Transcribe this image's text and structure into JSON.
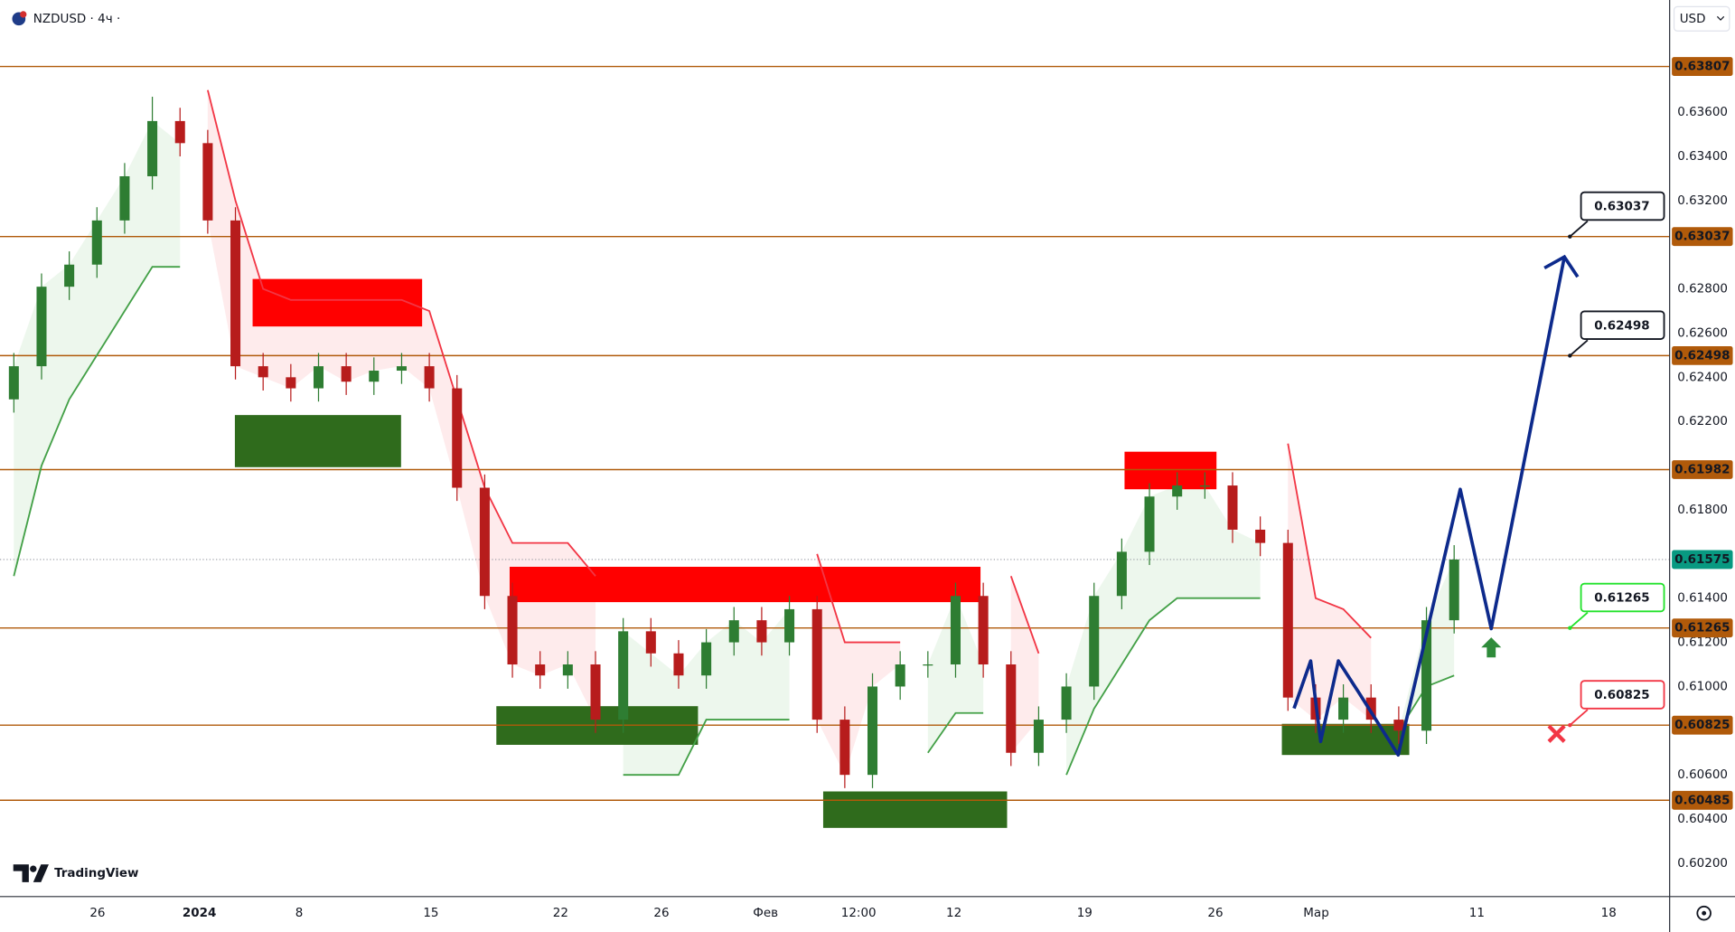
{
  "chart_data": {
    "type": "candlestick",
    "title": "NZDUSD · 4ч ·",
    "currency": "USD",
    "brand": "TradingView",
    "up_color": "#2e7d32",
    "down_color": "#b71c1c",
    "x": [
      0,
      1,
      2,
      3,
      4,
      5,
      6,
      7,
      8,
      9,
      10,
      11,
      12,
      13,
      14,
      15,
      16,
      17,
      18,
      19,
      20,
      21,
      22,
      23,
      24,
      25,
      26,
      27,
      28,
      29,
      30,
      31,
      32,
      33,
      34,
      35,
      36,
      37,
      38,
      39,
      40,
      41,
      42,
      43,
      44,
      45,
      46,
      47,
      48,
      49,
      50,
      51,
      52
    ],
    "open": [
      0.623,
      0.6245,
      0.6281,
      0.6291,
      0.6311,
      0.6331,
      0.6356,
      0.6346,
      0.6311,
      0.6245,
      0.624,
      0.6235,
      0.6245,
      0.6238,
      0.6243,
      0.6245,
      0.6235,
      0.619,
      0.6141,
      0.611,
      0.6105,
      0.611,
      0.6085,
      0.6125,
      0.6115,
      0.6105,
      0.612,
      0.613,
      0.612,
      0.6135,
      0.6085,
      0.606,
      0.61,
      0.611,
      0.611,
      0.6141,
      0.611,
      0.607,
      0.6085,
      0.61,
      0.6141,
      0.6161,
      0.6186,
      0.6191,
      0.6191,
      0.6171,
      0.6165,
      0.6095,
      0.6085,
      0.6095,
      0.6085,
      0.608,
      0.613
    ],
    "high": [
      0.6251,
      0.6287,
      0.6297,
      0.6317,
      0.6337,
      0.6367,
      0.6362,
      0.6352,
      0.6317,
      0.6251,
      0.6246,
      0.6251,
      0.6251,
      0.6249,
      0.6251,
      0.6251,
      0.6241,
      0.6196,
      0.6147,
      0.6116,
      0.6116,
      0.6116,
      0.6131,
      0.6131,
      0.6121,
      0.6126,
      0.6136,
      0.6136,
      0.6141,
      0.6141,
      0.6091,
      0.6106,
      0.6116,
      0.6116,
      0.6147,
      0.6147,
      0.6116,
      0.6091,
      0.6106,
      0.6147,
      0.6167,
      0.6192,
      0.6197,
      0.6197,
      0.6197,
      0.6177,
      0.6171,
      0.6101,
      0.6101,
      0.6101,
      0.6091,
      0.6136,
      0.6164
    ],
    "low": [
      0.6224,
      0.6239,
      0.6275,
      0.6285,
      0.6305,
      0.6325,
      0.634,
      0.6305,
      0.6239,
      0.6234,
      0.6229,
      0.6229,
      0.6232,
      0.6232,
      0.6237,
      0.6229,
      0.6184,
      0.6135,
      0.6104,
      0.6099,
      0.6099,
      0.6079,
      0.6079,
      0.6109,
      0.6099,
      0.6099,
      0.6114,
      0.6114,
      0.6114,
      0.6079,
      0.6054,
      0.6054,
      0.6094,
      0.6104,
      0.6104,
      0.6104,
      0.6064,
      0.6064,
      0.6079,
      0.6094,
      0.6135,
      0.6155,
      0.618,
      0.6185,
      0.6165,
      0.6159,
      0.6089,
      0.6079,
      0.6079,
      0.6079,
      0.6074,
      0.6074,
      0.6124
    ],
    "close": [
      0.6245,
      0.6281,
      0.6291,
      0.6311,
      0.6331,
      0.6356,
      0.6346,
      0.6311,
      0.6245,
      0.624,
      0.6235,
      0.6245,
      0.6238,
      0.6243,
      0.6245,
      0.6235,
      0.619,
      0.6141,
      0.611,
      0.6105,
      0.611,
      0.6085,
      0.6125,
      0.6115,
      0.6105,
      0.612,
      0.613,
      0.612,
      0.6135,
      0.6085,
      0.606,
      0.61,
      0.611,
      0.611,
      0.6141,
      0.611,
      0.607,
      0.6085,
      0.61,
      0.6141,
      0.6161,
      0.6186,
      0.6191,
      0.6191,
      0.6171,
      0.6165,
      0.6095,
      0.6085,
      0.6095,
      0.6085,
      0.608,
      0.613,
      0.61575
    ],
    "stop_up": {
      "color": "#43a047",
      "fill": "rgba(76,175,80,0.10)",
      "values": [
        0.615,
        0.62,
        0.623,
        0.625,
        0.627,
        0.629,
        0.629,
        null,
        null,
        null,
        null,
        null,
        null,
        null,
        null,
        null,
        null,
        null,
        null,
        null,
        null,
        null,
        0.606,
        0.606,
        0.606,
        0.6085,
        0.6085,
        0.6085,
        0.6085,
        null,
        null,
        null,
        null,
        0.607,
        0.6088,
        0.6088,
        null,
        null,
        0.606,
        0.609,
        0.611,
        0.613,
        0.614,
        0.614,
        0.614,
        0.614,
        null,
        null,
        null,
        null,
        0.608,
        0.61,
        0.6105
      ]
    },
    "stop_down": {
      "color": "#f23645",
      "fill": "rgba(242,54,69,0.10)",
      "values": [
        null,
        null,
        null,
        null,
        null,
        null,
        null,
        0.637,
        0.632,
        0.628,
        0.6275,
        0.6275,
        0.6275,
        0.6275,
        0.6275,
        0.627,
        0.623,
        0.619,
        0.6165,
        0.6165,
        0.6165,
        0.615,
        null,
        null,
        null,
        null,
        null,
        null,
        null,
        0.616,
        0.612,
        0.612,
        0.612,
        null,
        null,
        null,
        0.615,
        0.6115,
        null,
        null,
        null,
        null,
        null,
        null,
        null,
        null,
        0.621,
        0.614,
        0.6135,
        0.6122,
        null,
        null,
        null
      ]
    },
    "zones": [
      {
        "x": [
          8.62,
          14.74
        ],
        "y": [
          0.6263,
          0.62845
        ],
        "color": "#ff0000"
      },
      {
        "x": [
          17.9,
          34.9
        ],
        "y": [
          0.61382,
          0.61542
        ],
        "color": "#ff0000"
      },
      {
        "x": [
          40.1,
          43.42
        ],
        "y": [
          0.61893,
          0.62063
        ],
        "color": "#ff0000"
      },
      {
        "x": [
          7.98,
          13.98
        ],
        "y": [
          0.61993,
          0.62229
        ],
        "color": "#2f6b1c"
      },
      {
        "x": [
          17.42,
          24.7
        ],
        "y": [
          0.60736,
          0.60911
        ],
        "color": "#2f6b1c"
      },
      {
        "x": [
          29.22,
          35.86
        ],
        "y": [
          0.6036,
          0.60525
        ],
        "color": "#2f6b1c"
      },
      {
        "x": [
          45.78,
          50.38
        ],
        "y": [
          0.6069,
          0.60831
        ],
        "color": "#2f6b1c"
      }
    ],
    "levels": {
      "color": "#b05a0a",
      "items": [
        {
          "value": 0.63807,
          "label": "0.63807"
        },
        {
          "value": 0.63037,
          "label": "0.63037"
        },
        {
          "value": 0.62498,
          "label": "0.62498"
        },
        {
          "value": 0.61982,
          "label": "0.61982"
        },
        {
          "value": 0.61265,
          "label": "0.61265"
        },
        {
          "value": 0.60825,
          "label": "0.60825"
        },
        {
          "value": 0.60485,
          "label": "0.60485"
        }
      ]
    },
    "current_price": {
      "value": 0.61575,
      "label": "0.61575",
      "color": "#089981"
    },
    "projection": {
      "color": "#0d2a8c",
      "x": [
        46.22,
        46.82,
        47.18,
        47.82,
        48.54,
        49.98,
        52.22,
        53.34,
        55.98
      ],
      "y": [
        0.60901,
        0.61116,
        0.60751,
        0.61116,
        0.60976,
        0.6069,
        0.61893,
        0.61262,
        0.62945
      ]
    },
    "targets": [
      {
        "x": 56.18,
        "value": 0.63037,
        "label": "0.63037",
        "color": "#131722"
      },
      {
        "x": 56.18,
        "value": 0.62498,
        "label": "0.62498",
        "color": "#131722"
      },
      {
        "x": 56.18,
        "value": 0.61265,
        "label": "0.61265",
        "color": "#22e22b"
      },
      {
        "x": 56.18,
        "value": 0.60825,
        "label": "0.60825",
        "color": "#f23645"
      }
    ],
    "signals": [
      {
        "kind": "buy",
        "x": 53.34,
        "value": 0.61177,
        "color": "#2e8b3a"
      },
      {
        "kind": "sell",
        "x": 55.7,
        "value": 0.60786,
        "color": "#f23645"
      }
    ],
    "xlim": [
      -0.5,
      59.78
    ],
    "xticks": [
      {
        "value": 3.02,
        "label": "26"
      },
      {
        "value": 6.7,
        "label": "2024"
      },
      {
        "value": 10.3,
        "label": "8"
      },
      {
        "value": 15.06,
        "label": "15"
      },
      {
        "value": 19.74,
        "label": "22"
      },
      {
        "value": 23.38,
        "label": "26"
      },
      {
        "value": 27.14,
        "label": "Фев"
      },
      {
        "value": 30.5,
        "label": "12:00"
      },
      {
        "value": 33.94,
        "label": "12"
      },
      {
        "value": 38.66,
        "label": "19"
      },
      {
        "value": 43.38,
        "label": "26"
      },
      {
        "value": 47.02,
        "label": "Мар"
      },
      {
        "value": 52.82,
        "label": "11"
      },
      {
        "value": 57.58,
        "label": "18"
      }
    ],
    "ylim": [
      0.60049,
      0.64108
    ],
    "yticks": [
      {
        "value": 0.602,
        "label": "0.60200"
      },
      {
        "value": 0.604,
        "label": "0.60400"
      },
      {
        "value": 0.606,
        "label": "0.60600"
      },
      {
        "value": 0.61,
        "label": "0.61000"
      },
      {
        "value": 0.612,
        "label": "0.61200"
      },
      {
        "value": 0.614,
        "label": "0.61400"
      },
      {
        "value": 0.618,
        "label": "0.61800"
      },
      {
        "value": 0.622,
        "label": "0.62200"
      },
      {
        "value": 0.624,
        "label": "0.62400"
      },
      {
        "value": 0.626,
        "label": "0.62600"
      },
      {
        "value": 0.628,
        "label": "0.62800"
      },
      {
        "value": 0.632,
        "label": "0.63200"
      },
      {
        "value": 0.634,
        "label": "0.63400"
      },
      {
        "value": 0.636,
        "label": "0.63600"
      }
    ]
  }
}
